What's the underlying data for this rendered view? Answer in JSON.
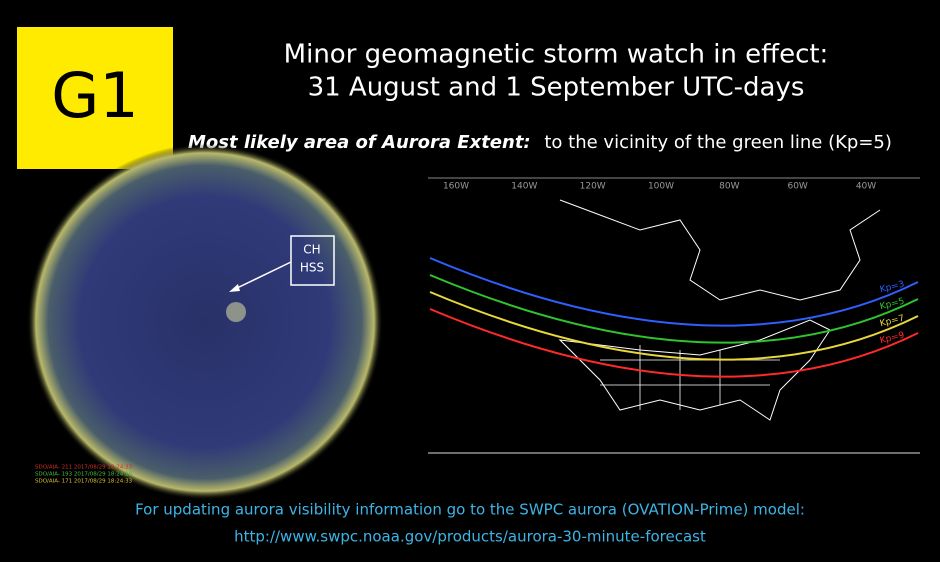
{
  "badge": "G1",
  "title": [
    "Minor geomagnetic storm watch in effect:",
    "31 August and 1 September UTC-days"
  ],
  "subtitle": {
    "emphasis": "Most likely area of Aurora Extent:",
    "text": "to the vicinity of the green line (Kp=5)"
  },
  "sun_image": {
    "annotation": [
      "CH",
      "HSS"
    ],
    "captions": [
      {
        "text": "SDO/AIA- 211 2017/08/29 18:24:33",
        "color": "#d0302a"
      },
      {
        "text": "SDO/AIA- 193 2017/08/29 18:24:28",
        "color": "#3fbf3f"
      },
      {
        "text": "SDO/AIA- 171 2017/08/29 18:24:33",
        "color": "#d8c23a"
      }
    ]
  },
  "map": {
    "longitudes": [
      "160W",
      "140W",
      "120W",
      "100W",
      "80W",
      "60W",
      "40W"
    ],
    "kp_lines": [
      {
        "label": "Kp=3",
        "color": "#2f5fff"
      },
      {
        "label": "Kp=5",
        "color": "#2fc42f"
      },
      {
        "label": "Kp=7",
        "color": "#e8d83a"
      },
      {
        "label": "Kp=9",
        "color": "#ff2a2a"
      }
    ]
  },
  "footer": [
    "For updating aurora visibility information go to the SWPC aurora (OVATION-Prime) model:",
    "http://www.swpc.noaa.gov/products/aurora-30-minute-forecast"
  ]
}
